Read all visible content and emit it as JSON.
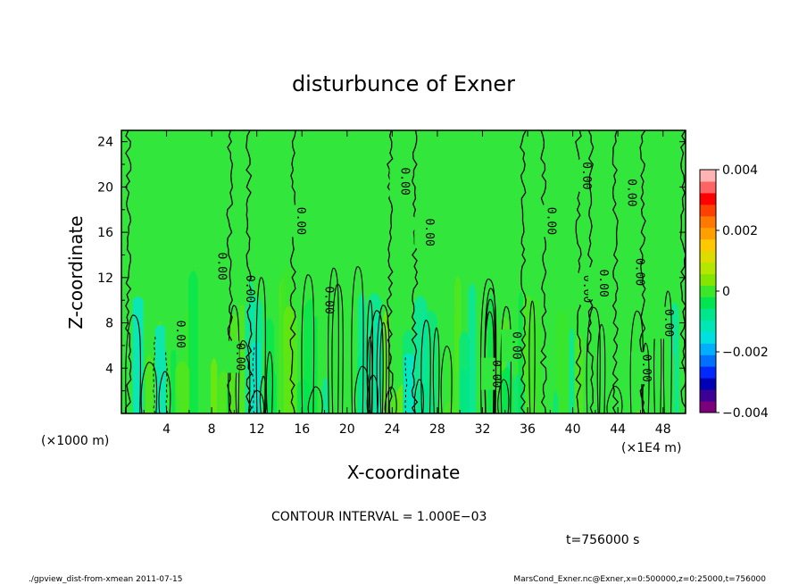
{
  "chart_data": {
    "type": "heatmap",
    "title": "disturbunce of Exner",
    "xlabel": "X-coordinate",
    "ylabel": "Z-coordinate",
    "x_unit_label": "(×1E4 m)",
    "y_unit_label": "(×1000 m)",
    "xlim": [
      0,
      50
    ],
    "ylim": [
      0,
      25
    ],
    "x_ticks": [
      "4",
      "8",
      "12",
      "16",
      "20",
      "24",
      "28",
      "32",
      "36",
      "40",
      "44",
      "48"
    ],
    "y_ticks": [
      "4",
      "8",
      "12",
      "16",
      "20",
      "24"
    ],
    "colorbar": {
      "range": [
        -0.004,
        0.004
      ],
      "tick_labels": [
        "0.004",
        "0.002",
        "0",
        "−0.002",
        "−0.004"
      ],
      "colors": [
        "#7b007b",
        "#3c0096",
        "#0000b4",
        "#0028ff",
        "#0070ff",
        "#00b0ff",
        "#00e0e0",
        "#00e6b4",
        "#00e68c",
        "#00e650",
        "#3ce628",
        "#82e600",
        "#b4e600",
        "#dcdc00",
        "#ffc800",
        "#ffa000",
        "#ff7800",
        "#ff4000",
        "#ff0000",
        "#ff6464",
        "#ffb4b4"
      ]
    },
    "contour_interval_text": "CONTOUR INTERVAL = 1.000E−03",
    "contour_label": "0.00",
    "time_text": "t=756000 s"
  },
  "footer": {
    "left": "./gpview_dist-from-xmean  2011-07-15",
    "right": "MarsCond_Exner.nc@Exner,x=0:500000,z=0:25000,t=756000"
  }
}
